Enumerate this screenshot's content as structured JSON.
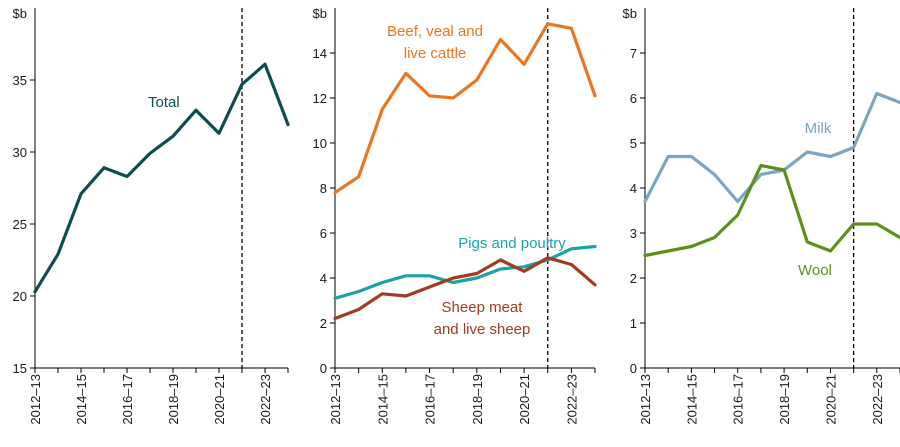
{
  "chart_data": [
    {
      "type": "line",
      "unit_label": "$b",
      "ylim": [
        15,
        40
      ],
      "yticks": [
        15,
        20,
        25,
        30,
        35
      ],
      "x": [
        "2012–13",
        "2013–14",
        "2014–15",
        "2015–16",
        "2016–17",
        "2017–18",
        "2018–19",
        "2019–20",
        "2020–21",
        "2021–22",
        "2022–23",
        "2023–24"
      ],
      "xtick_labels": [
        "2012–13",
        "2014–15",
        "2016–17",
        "2018–19",
        "2020–21",
        "2022–23"
      ],
      "forecast_start": "2021–22",
      "grid": false,
      "series": [
        {
          "name": "Total",
          "color": "#0e4d4f",
          "values": [
            20.3,
            22.9,
            27.1,
            28.9,
            28.3,
            29.9,
            31.1,
            32.9,
            31.3,
            34.7,
            36.1,
            31.9
          ],
          "label_lines": [
            "Total"
          ]
        }
      ]
    },
    {
      "type": "line",
      "unit_label": "$b",
      "ylim": [
        0,
        16
      ],
      "yticks": [
        0,
        2,
        4,
        6,
        8,
        10,
        12,
        14
      ],
      "x": [
        "2012–13",
        "2013–14",
        "2014–15",
        "2015–16",
        "2016–17",
        "2017–18",
        "2018–19",
        "2019–20",
        "2020–21",
        "2021–22",
        "2022–23",
        "2023–24"
      ],
      "xtick_labels": [
        "2012–13",
        "2014–15",
        "2016–17",
        "2018–19",
        "2020–21",
        "2022–23"
      ],
      "forecast_start": "2021–22",
      "grid": false,
      "series": [
        {
          "name": "Beef, veal and live cattle",
          "color": "#e87722",
          "values": [
            7.8,
            8.5,
            11.5,
            13.1,
            12.1,
            12.0,
            12.8,
            14.6,
            13.5,
            15.3,
            15.1,
            12.1
          ],
          "label_lines": [
            "Beef, veal and",
            "live cattle"
          ]
        },
        {
          "name": "Pigs and poultry",
          "color": "#1aa3a8",
          "values": [
            3.1,
            3.4,
            3.8,
            4.1,
            4.1,
            3.8,
            4.0,
            4.4,
            4.5,
            4.8,
            5.3,
            5.4
          ],
          "label_lines": [
            "Pigs and poultry"
          ]
        },
        {
          "name": "Sheep meat and live sheep",
          "color": "#a33a22",
          "values": [
            2.2,
            2.6,
            3.3,
            3.2,
            3.6,
            4.0,
            4.2,
            4.8,
            4.3,
            4.9,
            4.6,
            3.7
          ],
          "label_lines": [
            "Sheep meat",
            "and live sheep"
          ]
        }
      ]
    },
    {
      "type": "line",
      "unit_label": "$b",
      "ylim": [
        0,
        8
      ],
      "yticks": [
        0,
        1,
        2,
        3,
        4,
        5,
        6,
        7
      ],
      "x": [
        "2012–13",
        "2013–14",
        "2014–15",
        "2015–16",
        "2016–17",
        "2017–18",
        "2018–19",
        "2019–20",
        "2020–21",
        "2021–22",
        "2022–23",
        "2023–24"
      ],
      "xtick_labels": [
        "2012–13",
        "2014–15",
        "2016–17",
        "2018–19",
        "2020–21",
        "2022–23"
      ],
      "forecast_start": "2021–22",
      "grid": false,
      "series": [
        {
          "name": "Milk",
          "color": "#7aa6c2",
          "values": [
            3.7,
            4.7,
            4.7,
            4.3,
            3.7,
            4.3,
            4.4,
            4.8,
            4.7,
            4.9,
            6.1,
            5.9
          ],
          "label_lines": [
            "Milk"
          ]
        },
        {
          "name": "Wool",
          "color": "#5e8f1a",
          "values": [
            2.5,
            2.6,
            2.7,
            2.9,
            3.4,
            4.5,
            4.4,
            2.8,
            2.6,
            3.2,
            3.2,
            2.9
          ],
          "label_lines": [
            "Wool"
          ]
        }
      ]
    }
  ]
}
